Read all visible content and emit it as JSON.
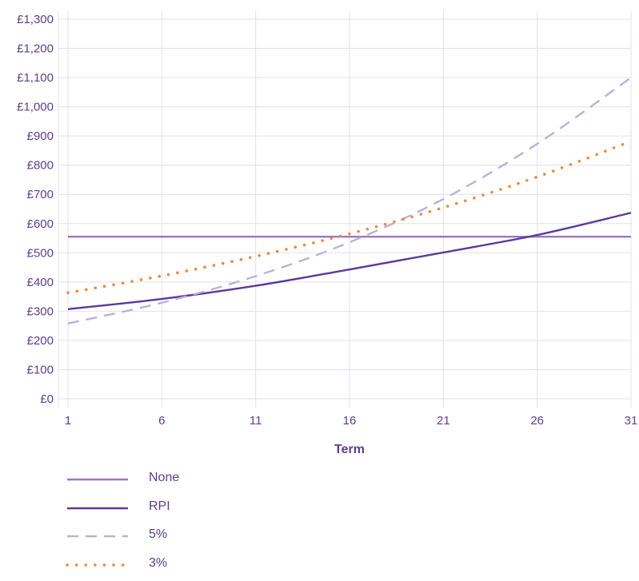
{
  "chart_data": {
    "type": "line",
    "title": "",
    "xlabel": "Term",
    "ylabel": "",
    "x": [
      1,
      6,
      11,
      16,
      21,
      26,
      31
    ],
    "xlim": [
      1,
      31
    ],
    "ylim": [
      0,
      1300
    ],
    "yticks": [
      0,
      100,
      200,
      300,
      400,
      500,
      600,
      700,
      800,
      900,
      1000,
      1100,
      1200,
      1300
    ],
    "ytick_labels": [
      "£0",
      "£100",
      "£200",
      "£300",
      "£400",
      "£500",
      "£600",
      "£700",
      "£800",
      "£900",
      "£1,000",
      "£1,100",
      "£1,200",
      "£1,300"
    ],
    "grid": true,
    "legend_position": "bottom-left",
    "series": [
      {
        "name": "None",
        "color": "#9b76c1",
        "style": "solid",
        "x": [
          1,
          31
        ],
        "values": [
          555,
          555
        ]
      },
      {
        "name": "RPI",
        "color": "#5a3a9c",
        "style": "solid",
        "x": [
          1,
          6,
          11,
          16,
          21,
          26,
          31
        ],
        "values": [
          307,
          342,
          387,
          443,
          501,
          561,
          637
        ]
      },
      {
        "name": "5%",
        "color": "#b8b3d9",
        "style": "dashed",
        "x": [
          1,
          6,
          11,
          16,
          21,
          26,
          31
        ],
        "values": [
          258,
          329,
          420,
          536,
          684,
          873,
          1100
        ]
      },
      {
        "name": "3%",
        "color": "#ef8a3e",
        "style": "dotted",
        "x": [
          1,
          6,
          11,
          16,
          21,
          26,
          31
        ],
        "values": [
          363,
          421,
          488,
          565,
          655,
          760,
          882
        ]
      }
    ]
  }
}
